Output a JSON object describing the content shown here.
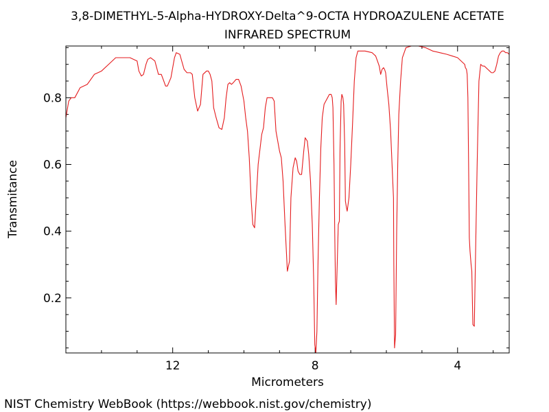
{
  "chart_data": {
    "type": "line",
    "title_lines": [
      "3,8-DIMETHYL-5-Alpha-HYDROXY-Delta^9-OCTA HYDROAZULENE ACETATE",
      "INFRARED SPECTRUM"
    ],
    "xlabel": "Micrometers",
    "ylabel": "Transmitance",
    "credit": "NIST Chemistry WebBook (https://webbook.nist.gov/chemistry)",
    "xlim": [
      15.0,
      2.55
    ],
    "ylim": [
      0.035,
      0.955
    ],
    "x_ticks": [
      {
        "value": 12,
        "label": "12"
      },
      {
        "value": 8,
        "label": "8"
      },
      {
        "value": 4,
        "label": "4"
      }
    ],
    "y_ticks": [
      {
        "value": 0.2,
        "label": "0.2"
      },
      {
        "value": 0.4,
        "label": "0.4"
      },
      {
        "value": 0.6,
        "label": "0.6"
      },
      {
        "value": 0.8,
        "label": "0.8"
      }
    ],
    "x_minor_step": 1,
    "y_minor_step": 0.05,
    "line_color": "#e41a1c",
    "series": [
      {
        "x": [
          15.0,
          14.92,
          14.85,
          14.75,
          14.6,
          14.4,
          14.2,
          14.0,
          13.8,
          13.6,
          13.4,
          13.2,
          13.0,
          12.95,
          12.88,
          12.82,
          12.75,
          12.7,
          12.62,
          12.5,
          12.4,
          12.32,
          12.25,
          12.2,
          12.15,
          12.05,
          11.95,
          11.9,
          11.8,
          11.68,
          11.6,
          11.55,
          11.5,
          11.45,
          11.38,
          11.3,
          11.22,
          11.15,
          11.05,
          11.0,
          10.95,
          10.9,
          10.85,
          10.78,
          10.7,
          10.62,
          10.55,
          10.5,
          10.45,
          10.4,
          10.35,
          10.3,
          10.22,
          10.15,
          10.08,
          10.0,
          9.95,
          9.9,
          9.85,
          9.82,
          9.8,
          9.75,
          9.7,
          9.6,
          9.5,
          9.45,
          9.4,
          9.35,
          9.3,
          9.25,
          9.2,
          9.15,
          9.1,
          9.05,
          9.0,
          8.95,
          8.9,
          8.85,
          8.78,
          8.72,
          8.68,
          8.62,
          8.56,
          8.52,
          8.48,
          8.43,
          8.38,
          8.32,
          8.28,
          8.22,
          8.18,
          8.13,
          8.08,
          8.04,
          8.01,
          7.98,
          7.95,
          7.92,
          7.88,
          7.84,
          7.8,
          7.75,
          7.7,
          7.65,
          7.6,
          7.55,
          7.52,
          7.5,
          7.47,
          7.45,
          7.43,
          7.41,
          7.38,
          7.35,
          7.32,
          7.3,
          7.27,
          7.25,
          7.22,
          7.2,
          7.17,
          7.15,
          7.12,
          7.1,
          7.05,
          7.0,
          6.95,
          6.9,
          6.85,
          6.8,
          6.6,
          6.4,
          6.3,
          6.25,
          6.2,
          6.16,
          6.12,
          6.08,
          6.05,
          6.02,
          5.98,
          5.93,
          5.88,
          5.84,
          5.8,
          5.79,
          5.77,
          5.74,
          5.71,
          5.68,
          5.65,
          5.6,
          5.55,
          5.45,
          5.3,
          5.1,
          4.9,
          4.7,
          4.5,
          4.3,
          4.15,
          4.0,
          3.9,
          3.8,
          3.78,
          3.75,
          3.73,
          3.71,
          3.69,
          3.67,
          3.65,
          3.62,
          3.6,
          3.57,
          3.53,
          3.5,
          3.45,
          3.4,
          3.35,
          3.3,
          3.25,
          3.2,
          3.15,
          3.1,
          3.05,
          3.0,
          2.95,
          2.9,
          2.85,
          2.8,
          2.75,
          2.7,
          2.65,
          2.6,
          2.55
        ],
        "y": [
          0.74,
          0.79,
          0.8,
          0.8,
          0.83,
          0.84,
          0.87,
          0.88,
          0.9,
          0.92,
          0.92,
          0.92,
          0.91,
          0.88,
          0.865,
          0.87,
          0.9,
          0.915,
          0.92,
          0.91,
          0.87,
          0.87,
          0.85,
          0.835,
          0.835,
          0.86,
          0.92,
          0.935,
          0.93,
          0.885,
          0.875,
          0.875,
          0.875,
          0.87,
          0.8,
          0.76,
          0.78,
          0.87,
          0.88,
          0.88,
          0.87,
          0.85,
          0.77,
          0.74,
          0.71,
          0.705,
          0.74,
          0.8,
          0.84,
          0.845,
          0.84,
          0.845,
          0.855,
          0.855,
          0.835,
          0.79,
          0.74,
          0.7,
          0.62,
          0.55,
          0.5,
          0.42,
          0.41,
          0.6,
          0.69,
          0.71,
          0.77,
          0.8,
          0.8,
          0.8,
          0.8,
          0.79,
          0.7,
          0.67,
          0.64,
          0.62,
          0.55,
          0.43,
          0.28,
          0.31,
          0.5,
          0.59,
          0.62,
          0.61,
          0.58,
          0.57,
          0.57,
          0.64,
          0.68,
          0.67,
          0.63,
          0.55,
          0.42,
          0.25,
          0.06,
          0.035,
          0.1,
          0.3,
          0.5,
          0.65,
          0.74,
          0.78,
          0.79,
          0.8,
          0.81,
          0.81,
          0.8,
          0.77,
          0.6,
          0.4,
          0.25,
          0.18,
          0.3,
          0.42,
          0.43,
          0.65,
          0.79,
          0.81,
          0.8,
          0.78,
          0.66,
          0.49,
          0.47,
          0.46,
          0.5,
          0.6,
          0.72,
          0.85,
          0.92,
          0.94,
          0.94,
          0.935,
          0.925,
          0.91,
          0.895,
          0.87,
          0.885,
          0.89,
          0.885,
          0.875,
          0.83,
          0.78,
          0.7,
          0.6,
          0.5,
          0.3,
          0.05,
          0.09,
          0.4,
          0.6,
          0.75,
          0.85,
          0.92,
          0.95,
          0.955,
          0.955,
          0.95,
          0.94,
          0.935,
          0.93,
          0.925,
          0.92,
          0.91,
          0.9,
          0.89,
          0.885,
          0.87,
          0.8,
          0.6,
          0.38,
          0.34,
          0.3,
          0.28,
          0.12,
          0.115,
          0.3,
          0.6,
          0.85,
          0.9,
          0.895,
          0.895,
          0.89,
          0.885,
          0.88,
          0.875,
          0.875,
          0.88,
          0.9,
          0.925,
          0.935,
          0.94,
          0.94,
          0.935,
          0.935,
          0.93
        ]
      }
    ]
  }
}
